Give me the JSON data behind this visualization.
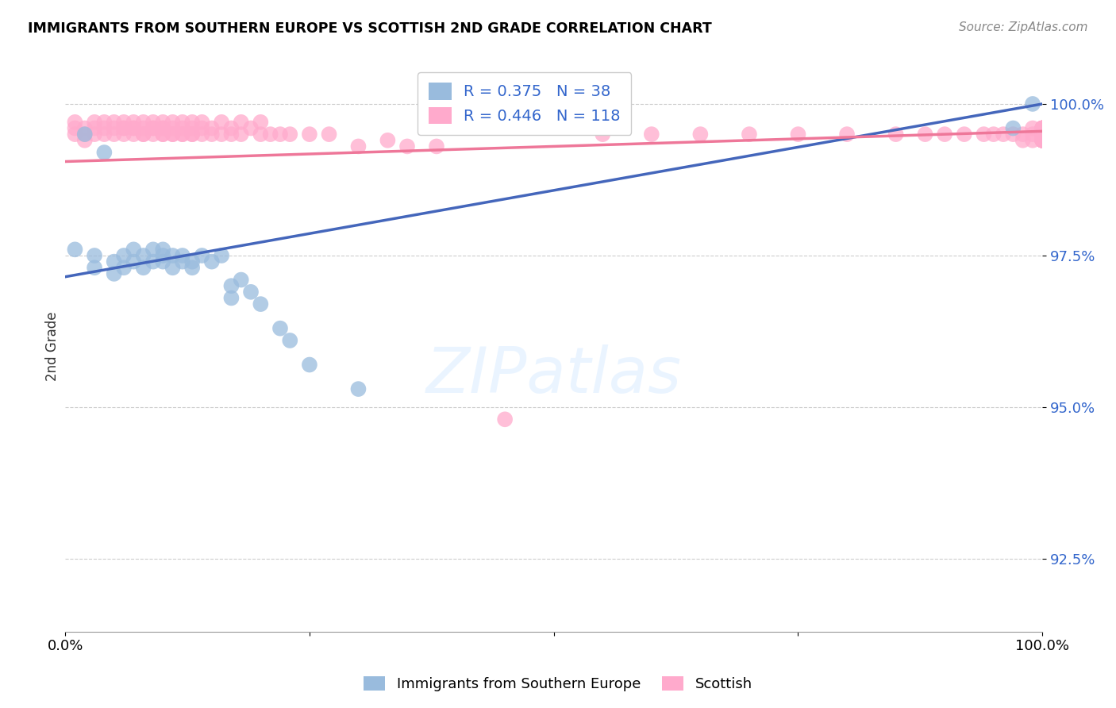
{
  "title": "IMMIGRANTS FROM SOUTHERN EUROPE VS SCOTTISH 2ND GRADE CORRELATION CHART",
  "source": "Source: ZipAtlas.com",
  "ylabel": "2nd Grade",
  "yticks": [
    92.5,
    95.0,
    97.5,
    100.0
  ],
  "ytick_labels": [
    "92.5%",
    "95.0%",
    "97.5%",
    "100.0%"
  ],
  "xrange": [
    0.0,
    1.0
  ],
  "yrange": [
    91.3,
    100.7
  ],
  "blue_R": 0.375,
  "blue_N": 38,
  "pink_R": 0.446,
  "pink_N": 118,
  "blue_color": "#99BBDD",
  "pink_color": "#FFAACC",
  "blue_line_color": "#4466BB",
  "pink_line_color": "#EE7799",
  "legend_label_blue": "Immigrants from Southern Europe",
  "legend_label_pink": "Scottish",
  "blue_line_x0": 0.0,
  "blue_line_y0": 97.15,
  "blue_line_x1": 1.0,
  "blue_line_y1": 100.0,
  "pink_line_x0": 0.0,
  "pink_line_y0": 99.05,
  "pink_line_x1": 1.0,
  "pink_line_y1": 99.55,
  "blue_points_x": [
    0.01,
    0.02,
    0.03,
    0.03,
    0.04,
    0.05,
    0.05,
    0.06,
    0.06,
    0.07,
    0.07,
    0.08,
    0.08,
    0.09,
    0.09,
    0.1,
    0.1,
    0.1,
    0.11,
    0.11,
    0.12,
    0.12,
    0.13,
    0.13,
    0.14,
    0.15,
    0.16,
    0.17,
    0.17,
    0.18,
    0.19,
    0.2,
    0.22,
    0.23,
    0.25,
    0.3,
    0.97,
    0.99
  ],
  "blue_points_y": [
    97.6,
    99.5,
    97.5,
    97.3,
    99.2,
    97.4,
    97.2,
    97.5,
    97.3,
    97.4,
    97.6,
    97.5,
    97.3,
    97.4,
    97.6,
    97.5,
    97.4,
    97.6,
    97.3,
    97.5,
    97.4,
    97.5,
    97.3,
    97.4,
    97.5,
    97.4,
    97.5,
    96.8,
    97.0,
    97.1,
    96.9,
    96.7,
    96.3,
    96.1,
    95.7,
    95.3,
    99.6,
    100.0
  ],
  "pink_points_x": [
    0.01,
    0.01,
    0.01,
    0.02,
    0.02,
    0.02,
    0.03,
    0.03,
    0.03,
    0.04,
    0.04,
    0.04,
    0.05,
    0.05,
    0.05,
    0.06,
    0.06,
    0.06,
    0.06,
    0.07,
    0.07,
    0.07,
    0.07,
    0.08,
    0.08,
    0.08,
    0.08,
    0.09,
    0.09,
    0.09,
    0.09,
    0.1,
    0.1,
    0.1,
    0.1,
    0.1,
    0.11,
    0.11,
    0.11,
    0.11,
    0.12,
    0.12,
    0.12,
    0.12,
    0.13,
    0.13,
    0.13,
    0.13,
    0.14,
    0.14,
    0.14,
    0.15,
    0.15,
    0.16,
    0.16,
    0.17,
    0.17,
    0.18,
    0.18,
    0.19,
    0.2,
    0.2,
    0.21,
    0.22,
    0.23,
    0.25,
    0.27,
    0.3,
    0.33,
    0.35,
    0.38,
    0.45,
    0.55,
    0.6,
    0.65,
    0.7,
    0.75,
    0.8,
    0.85,
    0.88,
    0.9,
    0.92,
    0.94,
    0.95,
    0.96,
    0.97,
    0.98,
    0.98,
    0.99,
    0.99,
    0.99,
    1.0,
    1.0,
    1.0,
    1.0,
    1.0,
    1.0,
    1.0,
    1.0,
    1.0,
    1.0,
    1.0,
    1.0,
    1.0,
    1.0,
    1.0,
    1.0,
    1.0,
    1.0,
    1.0,
    1.0,
    1.0,
    1.0,
    1.0
  ],
  "pink_points_y": [
    99.5,
    99.7,
    99.6,
    99.5,
    99.6,
    99.4,
    99.5,
    99.7,
    99.6,
    99.5,
    99.7,
    99.6,
    99.6,
    99.7,
    99.5,
    99.6,
    99.7,
    99.5,
    99.6,
    99.6,
    99.5,
    99.7,
    99.6,
    99.5,
    99.6,
    99.7,
    99.5,
    99.6,
    99.5,
    99.7,
    99.6,
    99.5,
    99.6,
    99.7,
    99.5,
    99.6,
    99.5,
    99.6,
    99.7,
    99.5,
    99.5,
    99.6,
    99.7,
    99.5,
    99.5,
    99.6,
    99.7,
    99.5,
    99.5,
    99.6,
    99.7,
    99.5,
    99.6,
    99.5,
    99.7,
    99.5,
    99.6,
    99.5,
    99.7,
    99.6,
    99.5,
    99.7,
    99.5,
    99.5,
    99.5,
    99.5,
    99.5,
    99.3,
    99.4,
    99.3,
    99.3,
    94.8,
    99.5,
    99.5,
    99.5,
    99.5,
    99.5,
    99.5,
    99.5,
    99.5,
    99.5,
    99.5,
    99.5,
    99.5,
    99.5,
    99.5,
    99.5,
    99.4,
    99.5,
    99.6,
    99.4,
    99.5,
    99.6,
    99.5,
    99.4,
    99.6,
    99.5,
    99.4,
    99.6,
    99.5,
    99.4,
    99.6,
    99.5,
    99.4,
    99.6,
    99.5,
    99.4,
    99.6,
    99.5,
    99.4,
    99.6,
    99.5,
    99.4,
    99.6
  ]
}
